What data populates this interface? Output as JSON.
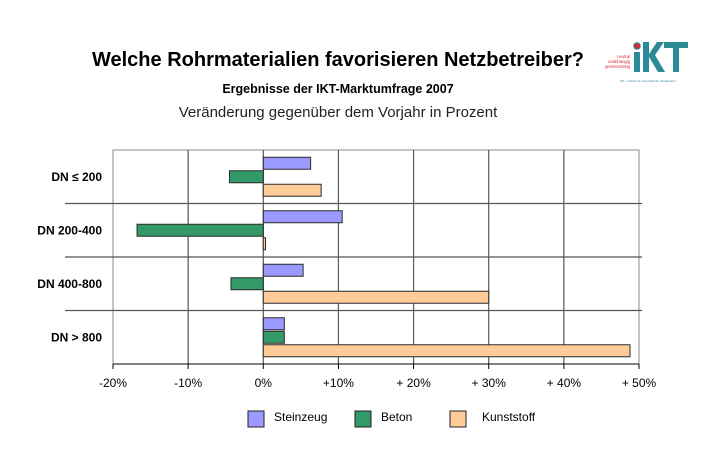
{
  "header": {
    "title": "Welche Rohrmaterialien favorisieren Netzbetreiber?",
    "subtitle": "Ergebnisse der IKT-Marktumfrage 2007",
    "subtitle2": "Veränderung gegenüber dem Vorjahr in Prozent"
  },
  "logo": {
    "name": "IKT",
    "tagline_lines": [
      "neutral",
      "unabhängig",
      "gemeinnützig"
    ],
    "footer": "IKT - Institut für Unterirdische Infrastruktur",
    "colors": {
      "teal": "#2a8a96",
      "red": "#d8282f"
    }
  },
  "chart_data": {
    "type": "bar",
    "orientation": "horizontal",
    "title": "Welche Rohrmaterialien favorisieren Netzbetreiber?",
    "subtitle": "Veränderung gegenüber dem Vorjahr in Prozent",
    "xlabel": "",
    "ylabel": "",
    "categories": [
      "DN ≤ 200",
      "DN 200-400",
      "DN 400-800",
      "DN > 800"
    ],
    "series": [
      {
        "name": "Steinzeug",
        "color": "#9999ff",
        "values": [
          6.3,
          10.5,
          5.3,
          2.8
        ]
      },
      {
        "name": "Beton",
        "color": "#339966",
        "values": [
          -4.5,
          -16.8,
          -4.3,
          2.8
        ]
      },
      {
        "name": "Kunststoff",
        "color": "#ffcc99",
        "values": [
          7.7,
          0.3,
          30.0,
          48.8
        ]
      }
    ],
    "xlim": [
      -20,
      50
    ],
    "xticks": [
      -20,
      -10,
      0,
      10,
      20,
      30,
      40,
      50
    ],
    "xtick_labels": [
      "-20%",
      "-10%",
      "0%",
      "+10%",
      "+ 20%",
      "+ 30%",
      "+ 40%",
      "+ 50%"
    ],
    "grid": true,
    "legend": {
      "placement": "bottom",
      "entries": [
        "Steinzeug",
        "Beton",
        "Kunststoff"
      ]
    }
  }
}
